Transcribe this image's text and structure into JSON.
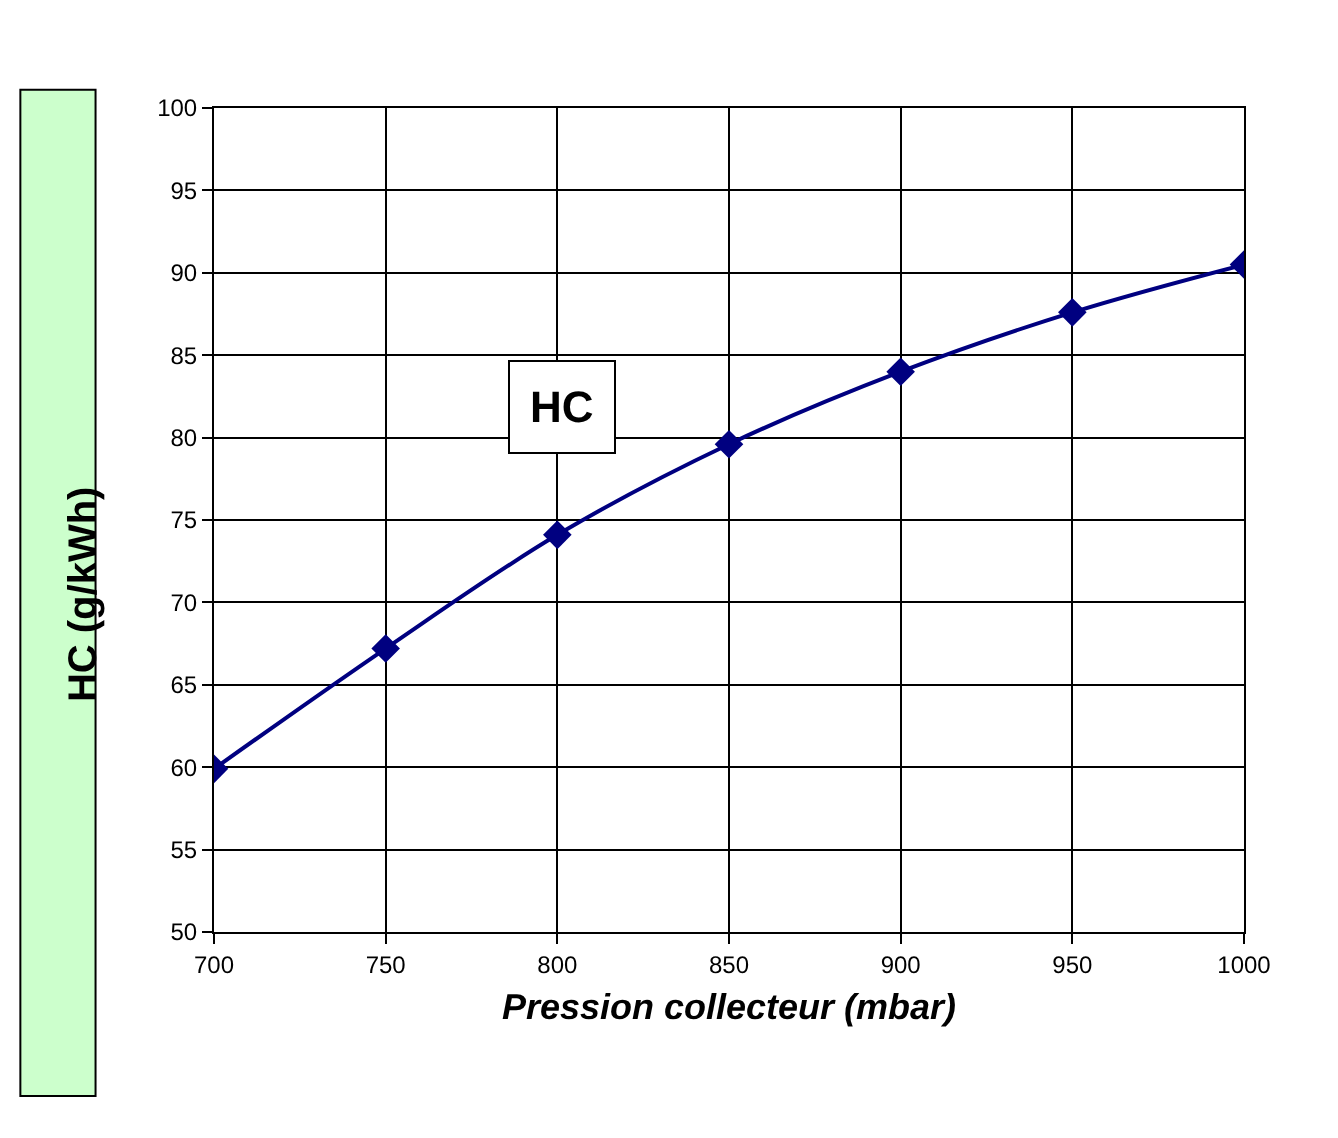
{
  "chart_data": {
    "type": "line",
    "title": "HC",
    "xlabel": "Pression collecteur (mbar)",
    "ylabel": "HC (g/kWh)",
    "x": [
      700,
      750,
      800,
      850,
      900,
      950,
      1000
    ],
    "series": [
      {
        "color": "#000080",
        "values": [
          59.9,
          67.2,
          74.1,
          79.6,
          84.0,
          87.6,
          90.5
        ]
      }
    ],
    "xlim": [
      700,
      1000
    ],
    "xticks": [
      700,
      750,
      800,
      850,
      900,
      950,
      1000
    ],
    "ylim": [
      50,
      100
    ],
    "yticks": [
      50,
      55,
      60,
      65,
      70,
      75,
      80,
      85,
      90,
      95,
      100
    ],
    "grid": true,
    "marker": "diamond",
    "legend": false
  }
}
